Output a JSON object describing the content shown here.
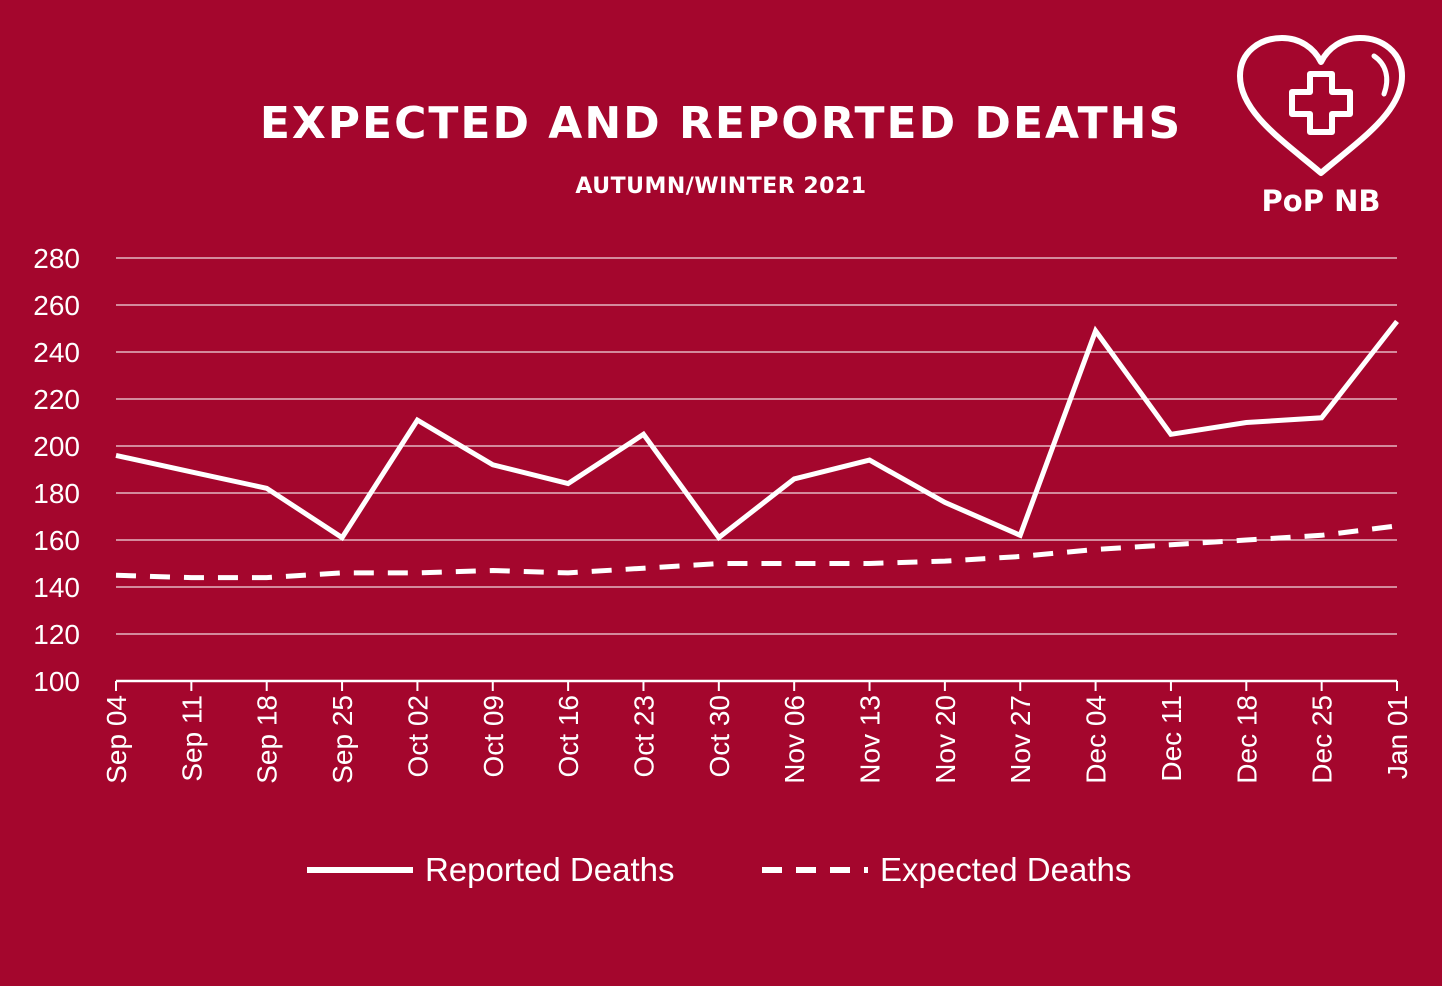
{
  "colors": {
    "background": "#a4062d",
    "foreground": "#ffffff"
  },
  "header": {
    "title": "EXPECTED AND REPORTED DEATHS",
    "subtitle": "AUTUMN/WINTER 2021"
  },
  "logo": {
    "text": "PoP NB",
    "icon": "heart-with-cross-icon"
  },
  "chart_data": {
    "type": "line",
    "title": "EXPECTED AND REPORTED DEATHS",
    "subtitle": "AUTUMN/WINTER 2021",
    "xlabel": "",
    "ylabel": "",
    "ylim": [
      100,
      280
    ],
    "yticks": [
      100,
      120,
      140,
      160,
      180,
      200,
      220,
      240,
      260,
      280
    ],
    "grid": true,
    "legend": "bottom",
    "categories": [
      "Sep 04",
      "Sep 11",
      "Sep 18",
      "Sep 25",
      "Oct 02",
      "Oct 09",
      "Oct 16",
      "Oct 23",
      "Oct 30",
      "Nov 06",
      "Nov 13",
      "Nov 20",
      "Nov 27",
      "Dec 04",
      "Dec 11",
      "Dec 18",
      "Dec 25",
      "Jan 01"
    ],
    "series": [
      {
        "name": "Reported Deaths",
        "style": "solid",
        "values": [
          196,
          189,
          182,
          161,
          211,
          192,
          184,
          205,
          161,
          186,
          194,
          176,
          162,
          249,
          205,
          210,
          212,
          253
        ]
      },
      {
        "name": "Expected Deaths",
        "style": "dashed",
        "values": [
          145,
          144,
          144,
          146,
          146,
          147,
          146,
          148,
          150,
          150,
          150,
          151,
          153,
          156,
          158,
          160,
          162,
          166
        ]
      }
    ]
  }
}
